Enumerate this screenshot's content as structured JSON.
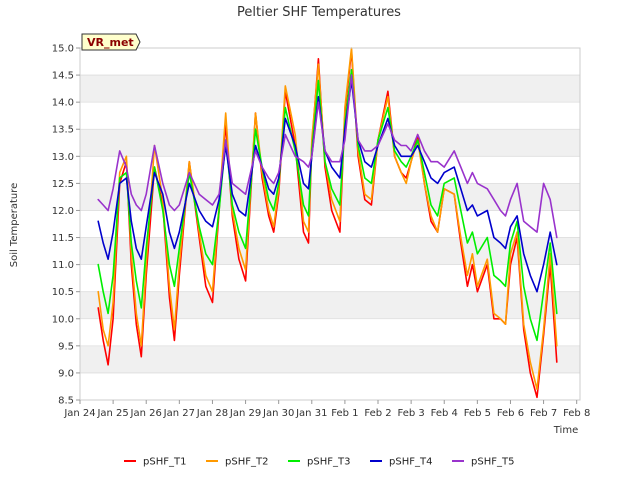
{
  "chart_data": {
    "type": "line",
    "title": "Peltier SHF Temperatures",
    "xlabel": "Time",
    "ylabel": "Soil Temperature",
    "site_label": "VR_met",
    "ylim": [
      8.5,
      15.0
    ],
    "xlim": [
      0,
      15.1
    ],
    "yticks": [
      8.5,
      9.0,
      9.5,
      10.0,
      10.5,
      11.0,
      11.5,
      12.0,
      12.5,
      13.0,
      13.5,
      14.0,
      14.5,
      15.0
    ],
    "xticks": [
      {
        "pos": 0,
        "label": "Jan 24"
      },
      {
        "pos": 1,
        "label": "Jan 25"
      },
      {
        "pos": 2,
        "label": "Jan 26"
      },
      {
        "pos": 3,
        "label": "Jan 27"
      },
      {
        "pos": 4,
        "label": "Jan 28"
      },
      {
        "pos": 5,
        "label": "Jan 29"
      },
      {
        "pos": 6,
        "label": "Jan 30"
      },
      {
        "pos": 7,
        "label": "Jan 31"
      },
      {
        "pos": 8,
        "label": "Feb 1"
      },
      {
        "pos": 9,
        "label": "Feb 2"
      },
      {
        "pos": 10,
        "label": "Feb 3"
      },
      {
        "pos": 11,
        "label": "Feb 4"
      },
      {
        "pos": 12,
        "label": "Feb 5"
      },
      {
        "pos": 13,
        "label": "Feb 6"
      },
      {
        "pos": 14,
        "label": "Feb 7"
      },
      {
        "pos": 15,
        "label": "Feb 8"
      }
    ],
    "series": [
      {
        "name": "pSHF_T1",
        "color": "#ff0000",
        "x": [
          0.55,
          0.7,
          0.85,
          1.0,
          1.2,
          1.4,
          1.55,
          1.7,
          1.85,
          2.0,
          2.25,
          2.5,
          2.7,
          2.85,
          3.0,
          3.3,
          3.6,
          3.8,
          4.0,
          4.2,
          4.4,
          4.6,
          4.8,
          5.0,
          5.3,
          5.5,
          5.7,
          5.85,
          6.0,
          6.2,
          6.5,
          6.75,
          6.9,
          7.0,
          7.2,
          7.4,
          7.6,
          7.85,
          8.0,
          8.2,
          8.4,
          8.6,
          8.8,
          9.0,
          9.3,
          9.5,
          9.7,
          9.85,
          10.0,
          10.2,
          10.4,
          10.6,
          10.8,
          11.0,
          11.3,
          11.5,
          11.7,
          11.85,
          12.0,
          12.3,
          12.5,
          12.7,
          12.85,
          13.0,
          13.2,
          13.4,
          13.6,
          13.8,
          14.0,
          14.2,
          14.4
        ],
        "y": [
          10.2,
          9.6,
          9.15,
          10.0,
          12.5,
          12.9,
          11.0,
          9.9,
          9.3,
          10.8,
          12.8,
          12.1,
          10.4,
          9.6,
          10.8,
          12.9,
          11.5,
          10.6,
          10.3,
          12.0,
          13.6,
          11.9,
          11.1,
          10.7,
          13.8,
          12.6,
          11.9,
          11.6,
          12.3,
          14.2,
          13.2,
          11.6,
          11.4,
          13.2,
          14.8,
          12.8,
          12.0,
          11.6,
          13.8,
          14.95,
          13.0,
          12.2,
          12.1,
          13.3,
          14.2,
          13.0,
          12.7,
          12.6,
          12.9,
          13.4,
          12.5,
          11.8,
          11.6,
          12.4,
          12.3,
          11.4,
          10.6,
          11.0,
          10.5,
          11.0,
          10.0,
          10.0,
          9.9,
          11.0,
          11.5,
          9.8,
          9.0,
          8.55,
          9.7,
          11.0,
          9.2
        ]
      },
      {
        "name": "pSHF_T2",
        "color": "#ff9900",
        "x": [
          0.55,
          0.7,
          0.85,
          1.0,
          1.2,
          1.4,
          1.55,
          1.7,
          1.85,
          2.0,
          2.25,
          2.5,
          2.7,
          2.85,
          3.0,
          3.3,
          3.6,
          3.8,
          4.0,
          4.2,
          4.4,
          4.6,
          4.8,
          5.0,
          5.3,
          5.5,
          5.7,
          5.85,
          6.0,
          6.2,
          6.5,
          6.75,
          6.9,
          7.0,
          7.2,
          7.4,
          7.6,
          7.85,
          8.0,
          8.2,
          8.4,
          8.6,
          8.8,
          9.0,
          9.3,
          9.5,
          9.7,
          9.85,
          10.0,
          10.2,
          10.4,
          10.6,
          10.8,
          11.0,
          11.3,
          11.5,
          11.7,
          11.85,
          12.0,
          12.3,
          12.5,
          12.7,
          12.85,
          13.0,
          13.2,
          13.4,
          13.6,
          13.8,
          14.0,
          14.2,
          14.4
        ],
        "y": [
          10.5,
          9.8,
          9.5,
          10.3,
          12.7,
          13.0,
          11.2,
          10.1,
          9.5,
          11.0,
          13.2,
          12.2,
          10.6,
          9.8,
          11.0,
          12.9,
          11.6,
          10.8,
          10.5,
          12.1,
          13.8,
          12.0,
          11.3,
          10.9,
          13.8,
          12.7,
          12.0,
          11.7,
          12.4,
          14.3,
          13.4,
          11.8,
          11.6,
          13.3,
          14.7,
          12.9,
          12.2,
          11.8,
          13.9,
          15.0,
          13.1,
          12.3,
          12.2,
          13.3,
          14.1,
          13.0,
          12.7,
          12.5,
          12.9,
          13.3,
          12.5,
          11.9,
          11.6,
          12.4,
          12.3,
          11.5,
          10.8,
          11.2,
          10.6,
          11.1,
          10.1,
          10.0,
          9.9,
          11.2,
          11.6,
          9.9,
          9.2,
          8.7,
          9.8,
          11.2,
          9.5
        ]
      },
      {
        "name": "pSHF_T3",
        "color": "#00ee00",
        "x": [
          0.55,
          0.7,
          0.85,
          1.0,
          1.2,
          1.4,
          1.55,
          1.7,
          1.85,
          2.0,
          2.25,
          2.5,
          2.7,
          2.85,
          3.0,
          3.3,
          3.6,
          3.8,
          4.0,
          4.2,
          4.4,
          4.6,
          4.8,
          5.0,
          5.3,
          5.5,
          5.7,
          5.85,
          6.0,
          6.2,
          6.5,
          6.75,
          6.9,
          7.0,
          7.2,
          7.4,
          7.6,
          7.85,
          8.0,
          8.2,
          8.4,
          8.6,
          8.8,
          9.0,
          9.3,
          9.5,
          9.7,
          9.85,
          10.0,
          10.2,
          10.4,
          10.6,
          10.8,
          11.0,
          11.3,
          11.5,
          11.7,
          11.85,
          12.0,
          12.3,
          12.5,
          12.7,
          12.85,
          13.0,
          13.2,
          13.4,
          13.6,
          13.8,
          14.0,
          14.2,
          14.4
        ],
        "y": [
          11.0,
          10.5,
          10.1,
          10.8,
          12.6,
          12.7,
          11.4,
          10.7,
          10.2,
          11.3,
          12.8,
          12.0,
          11.0,
          10.6,
          11.3,
          12.7,
          11.7,
          11.2,
          11.0,
          12.0,
          13.3,
          12.1,
          11.6,
          11.3,
          13.5,
          12.8,
          12.2,
          12.0,
          12.5,
          13.9,
          13.1,
          12.1,
          11.9,
          13.1,
          14.4,
          12.9,
          12.4,
          12.1,
          13.6,
          14.6,
          13.2,
          12.6,
          12.5,
          13.3,
          13.9,
          13.1,
          12.9,
          12.8,
          13.0,
          13.3,
          12.7,
          12.1,
          11.9,
          12.5,
          12.6,
          12.0,
          11.4,
          11.6,
          11.2,
          11.5,
          10.8,
          10.7,
          10.6,
          11.4,
          11.8,
          10.6,
          10.0,
          9.6,
          10.5,
          11.4,
          10.1
        ]
      },
      {
        "name": "pSHF_T4",
        "color": "#0000cc",
        "x": [
          0.55,
          0.7,
          0.85,
          1.0,
          1.2,
          1.4,
          1.55,
          1.7,
          1.85,
          2.0,
          2.25,
          2.5,
          2.7,
          2.85,
          3.0,
          3.3,
          3.6,
          3.8,
          4.0,
          4.2,
          4.4,
          4.6,
          4.8,
          5.0,
          5.3,
          5.5,
          5.7,
          5.85,
          6.0,
          6.2,
          6.5,
          6.75,
          6.9,
          7.0,
          7.2,
          7.4,
          7.6,
          7.85,
          8.0,
          8.2,
          8.4,
          8.6,
          8.8,
          9.0,
          9.3,
          9.5,
          9.7,
          9.85,
          10.0,
          10.2,
          10.4,
          10.6,
          10.8,
          11.0,
          11.3,
          11.5,
          11.7,
          11.85,
          12.0,
          12.3,
          12.5,
          12.7,
          12.85,
          13.0,
          13.2,
          13.4,
          13.6,
          13.8,
          14.0,
          14.2,
          14.4
        ],
        "y": [
          11.8,
          11.4,
          11.1,
          11.6,
          12.5,
          12.6,
          11.8,
          11.3,
          11.1,
          11.7,
          12.7,
          12.3,
          11.6,
          11.3,
          11.6,
          12.5,
          12.0,
          11.8,
          11.7,
          12.2,
          13.2,
          12.3,
          12.0,
          11.9,
          13.2,
          12.8,
          12.4,
          12.3,
          12.6,
          13.7,
          13.2,
          12.5,
          12.4,
          13.0,
          14.1,
          13.1,
          12.8,
          12.6,
          13.5,
          14.4,
          13.3,
          12.9,
          12.8,
          13.2,
          13.7,
          13.2,
          13.0,
          13.0,
          13.0,
          13.2,
          12.9,
          12.6,
          12.5,
          12.7,
          12.8,
          12.4,
          12.0,
          12.1,
          11.9,
          12.0,
          11.5,
          11.4,
          11.3,
          11.7,
          11.9,
          11.2,
          10.8,
          10.5,
          11.0,
          11.6,
          11.0
        ]
      },
      {
        "name": "pSHF_T5",
        "color": "#9933cc",
        "x": [
          0.55,
          0.7,
          0.85,
          1.0,
          1.2,
          1.4,
          1.55,
          1.7,
          1.85,
          2.0,
          2.25,
          2.5,
          2.7,
          2.85,
          3.0,
          3.3,
          3.6,
          3.8,
          4.0,
          4.2,
          4.4,
          4.6,
          4.8,
          5.0,
          5.3,
          5.5,
          5.7,
          5.85,
          6.0,
          6.2,
          6.5,
          6.75,
          6.9,
          7.0,
          7.2,
          7.4,
          7.6,
          7.85,
          8.0,
          8.2,
          8.4,
          8.6,
          8.8,
          9.0,
          9.3,
          9.5,
          9.7,
          9.85,
          10.0,
          10.2,
          10.4,
          10.6,
          10.8,
          11.0,
          11.3,
          11.5,
          11.7,
          11.85,
          12.0,
          12.3,
          12.5,
          12.7,
          12.85,
          13.0,
          13.2,
          13.4,
          13.6,
          13.8,
          14.0,
          14.2,
          14.4
        ],
        "y": [
          12.2,
          12.1,
          12.0,
          12.4,
          13.1,
          12.8,
          12.3,
          12.1,
          12.0,
          12.3,
          13.2,
          12.5,
          12.1,
          12.0,
          12.1,
          12.7,
          12.3,
          12.2,
          12.1,
          12.3,
          13.3,
          12.5,
          12.4,
          12.3,
          13.1,
          12.8,
          12.6,
          12.5,
          12.7,
          13.4,
          13.0,
          12.9,
          12.8,
          13.0,
          14.0,
          13.1,
          12.9,
          12.9,
          13.3,
          14.5,
          13.3,
          13.1,
          13.1,
          13.2,
          13.6,
          13.3,
          13.2,
          13.2,
          13.1,
          13.4,
          13.1,
          12.9,
          12.9,
          12.8,
          13.1,
          12.8,
          12.5,
          12.7,
          12.5,
          12.4,
          12.2,
          12.0,
          11.9,
          12.2,
          12.5,
          11.8,
          11.7,
          11.6,
          12.5,
          12.2,
          11.5
        ]
      }
    ]
  }
}
